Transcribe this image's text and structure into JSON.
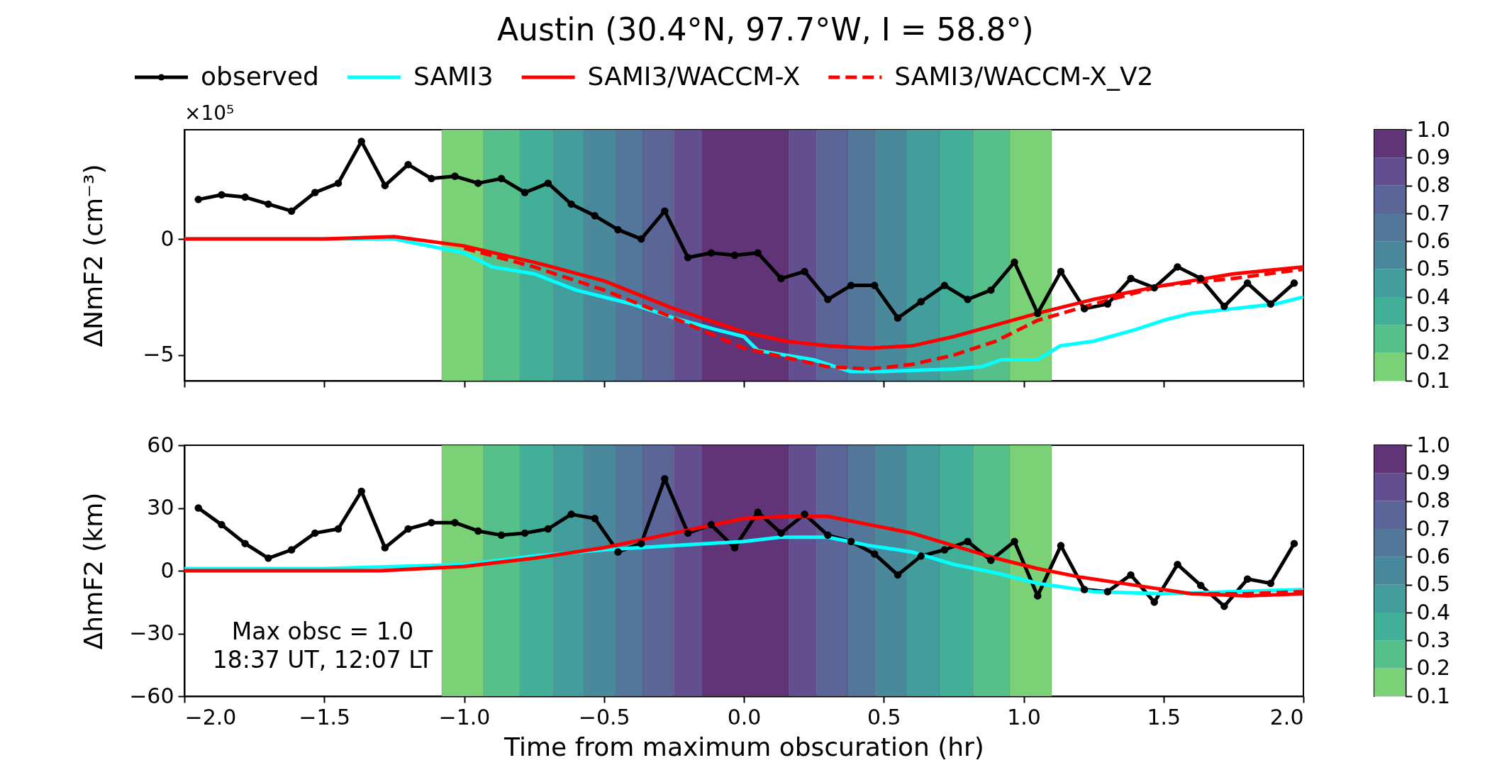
{
  "chart_data": [
    {
      "type": "line",
      "title": "Austin (30.4°N, 97.7°W, I = 58.8°)",
      "ylabel": "ΔNmF2 (cm⁻³)",
      "annotations": [
        "×10⁵"
      ],
      "legend": "top",
      "tick_labels": "y",
      "xlim": [
        -2,
        2
      ],
      "xticks": [
        {
          "value": -2,
          "label": null
        },
        {
          "value": -1.5,
          "label": null
        },
        {
          "value": -1,
          "label": null
        },
        {
          "value": -0.5,
          "label": null
        },
        {
          "value": 0,
          "label": null
        },
        {
          "value": 0.5,
          "label": null
        },
        {
          "value": 1,
          "label": null
        },
        {
          "value": 1.5,
          "label": null
        },
        {
          "value": 2,
          "label": null
        }
      ],
      "ylim": [
        -6.1,
        4.7
      ],
      "yticks": [
        {
          "value": -5,
          "label": "−5"
        },
        0
      ],
      "clim": [
        0.1,
        1.0
      ],
      "cticks": [
        0.1,
        0.2,
        0.3,
        0.4,
        0.5,
        0.6,
        0.7,
        0.8,
        0.9,
        {
          "value": 1,
          "label": "1.0"
        }
      ],
      "series": [
        {
          "name": "observed",
          "color": "#000000",
          "marker": "circle",
          "line_style": "solid",
          "x": [
            -1.95,
            -1.867,
            -1.783,
            -1.7,
            -1.617,
            -1.533,
            -1.45,
            -1.367,
            -1.283,
            -1.2,
            -1.117,
            -1.033,
            -0.95,
            -0.867,
            -0.783,
            -0.7,
            -0.617,
            -0.533,
            -0.45,
            -0.367,
            -0.283,
            -0.2,
            -0.117,
            -0.033,
            0.05,
            0.133,
            0.217,
            0.3,
            0.383,
            0.467,
            0.55,
            0.633,
            0.717,
            0.8,
            0.883,
            0.967,
            1.05,
            1.133,
            1.217,
            1.3,
            1.383,
            1.467,
            1.55,
            1.633,
            1.717,
            1.8,
            1.883,
            1.967
          ],
          "values": [
            1.7,
            1.9,
            1.8,
            1.5,
            1.2,
            2.0,
            2.4,
            4.2,
            2.3,
            3.2,
            2.6,
            2.7,
            2.4,
            2.6,
            2.0,
            2.4,
            1.5,
            1.0,
            0.4,
            0.0,
            1.2,
            -0.8,
            -0.6,
            -0.7,
            -0.6,
            -1.7,
            -1.4,
            -2.6,
            -2.0,
            -2.0,
            -3.4,
            -2.7,
            -2.0,
            -2.6,
            -2.2,
            -1.0,
            -3.2,
            -1.4,
            -3.0,
            -2.8,
            -1.7,
            -2.1,
            -1.2,
            -1.7,
            -2.9,
            -1.9,
            -2.8,
            -1.9
          ]
        },
        {
          "name": "SAMI3",
          "color": "#00ffff",
          "marker": "none",
          "line_style": "solid",
          "x": [
            -2,
            -1.5,
            -1.25,
            -1.0,
            -0.9,
            -0.75,
            -0.6,
            -0.5,
            -0.4,
            -0.25,
            -0.1,
            0,
            0.05,
            0.15,
            0.25,
            0.38,
            0.5,
            0.75,
            0.85,
            0.92,
            1.05,
            1.13,
            1.25,
            1.4,
            1.5,
            1.6,
            1.75,
            1.9,
            2.0
          ],
          "values": [
            0,
            0,
            0,
            -0.6,
            -1.2,
            -1.5,
            -2.2,
            -2.5,
            -2.8,
            -3.4,
            -3.9,
            -4.2,
            -4.8,
            -5.0,
            -5.2,
            -5.7,
            -5.7,
            -5.6,
            -5.5,
            -5.2,
            -5.2,
            -4.6,
            -4.4,
            -3.9,
            -3.5,
            -3.2,
            -3.0,
            -2.8,
            -2.5
          ]
        },
        {
          "name": "SAMI3/WACCM-X",
          "color": "#ff0000",
          "marker": "none",
          "line_style": "solid",
          "x": [
            -2,
            -1.5,
            -1.25,
            -1.0,
            -0.75,
            -0.5,
            -0.25,
            0,
            0.15,
            0.3,
            0.45,
            0.6,
            0.75,
            0.9,
            1.05,
            1.25,
            1.5,
            1.75,
            2.0
          ],
          "values": [
            0,
            0,
            0.1,
            -0.3,
            -1.0,
            -1.8,
            -3.0,
            -4.0,
            -4.4,
            -4.6,
            -4.7,
            -4.6,
            -4.2,
            -3.7,
            -3.2,
            -2.6,
            -2.0,
            -1.5,
            -1.2
          ]
        },
        {
          "name": "SAMI3/WACCM-X_V2",
          "color": "#ff0000",
          "marker": "none",
          "line_style": "dashed",
          "x": [
            -1.0,
            -0.75,
            -0.5,
            -0.25,
            0,
            0.15,
            0.3,
            0.45,
            0.6,
            0.75,
            0.9,
            1.05,
            1.25,
            1.5,
            1.75,
            2.0
          ],
          "values": [
            -0.4,
            -1.2,
            -2.2,
            -3.4,
            -4.7,
            -5.1,
            -5.5,
            -5.6,
            -5.4,
            -5.0,
            -4.4,
            -3.5,
            -2.8,
            -2.0,
            -1.7,
            -1.3
          ]
        }
      ],
      "bands": [
        {
          "axis": "x",
          "from": -1.08,
          "to": -0.93,
          "color": "#7ad176"
        },
        {
          "axis": "x",
          "from": -0.93,
          "to": -0.8,
          "color": "#56c08b"
        },
        {
          "axis": "x",
          "from": -0.8,
          "to": -0.68,
          "color": "#42b099"
        },
        {
          "axis": "x",
          "from": -0.68,
          "to": -0.57,
          "color": "#449d9d"
        },
        {
          "axis": "x",
          "from": -0.57,
          "to": -0.46,
          "color": "#4a889b"
        },
        {
          "axis": "x",
          "from": -0.46,
          "to": -0.36,
          "color": "#52779a"
        },
        {
          "axis": "x",
          "from": -0.36,
          "to": -0.25,
          "color": "#5b6598"
        },
        {
          "axis": "x",
          "from": -0.25,
          "to": -0.15,
          "color": "#634f90"
        },
        {
          "axis": "x",
          "from": -0.15,
          "to": 0.16,
          "color": "#613477"
        },
        {
          "axis": "x",
          "from": 0.16,
          "to": 0.26,
          "color": "#634f90"
        },
        {
          "axis": "x",
          "from": 0.26,
          "to": 0.37,
          "color": "#5b6598"
        },
        {
          "axis": "x",
          "from": 0.37,
          "to": 0.47,
          "color": "#52779a"
        },
        {
          "axis": "x",
          "from": 0.47,
          "to": 0.58,
          "color": "#4a889b"
        },
        {
          "axis": "x",
          "from": 0.58,
          "to": 0.7,
          "color": "#449d9d"
        },
        {
          "axis": "x",
          "from": 0.7,
          "to": 0.82,
          "color": "#42b099"
        },
        {
          "axis": "x",
          "from": 0.82,
          "to": 0.95,
          "color": "#56c08b"
        },
        {
          "axis": "x",
          "from": 0.95,
          "to": 1.1,
          "color": "#7ad176"
        }
      ]
    },
    {
      "type": "line",
      "xlabel": "Time from maximum obscuration (hr)",
      "ylabel": "ΔhmF2 (km)",
      "annotations": [
        "Max obsc = 1.0",
        "18:37 UT, 12:07 LT"
      ],
      "xlim": [
        -2,
        2
      ],
      "xticks": [
        {
          "value": -2,
          "label": "−2.0"
        },
        {
          "value": -1.5,
          "label": "−1.5"
        },
        {
          "value": -1,
          "label": "−1.0"
        },
        {
          "value": -0.5,
          "label": "−0.5"
        },
        {
          "value": 0,
          "label": "0.0"
        },
        {
          "value": 0.5,
          "label": "0.5"
        },
        {
          "value": 1,
          "label": "1.0"
        },
        {
          "value": 1.5,
          "label": "1.5"
        },
        {
          "value": 2,
          "label": "2.0"
        }
      ],
      "ylim": [
        -60,
        60
      ],
      "yticks": [
        {
          "value": -60,
          "label": "−60"
        },
        {
          "value": -30,
          "label": "−30"
        },
        0,
        30,
        60
      ],
      "clim": [
        0.1,
        1.0
      ],
      "cticks": [
        0.1,
        0.2,
        0.3,
        0.4,
        0.5,
        0.6,
        0.7,
        0.8,
        0.9,
        {
          "value": 1,
          "label": "1.0"
        }
      ],
      "series": [
        {
          "color": "#000000",
          "marker": "circle",
          "line_style": "solid",
          "x": [
            -1.95,
            -1.867,
            -1.783,
            -1.7,
            -1.617,
            -1.533,
            -1.45,
            -1.367,
            -1.283,
            -1.2,
            -1.117,
            -1.033,
            -0.95,
            -0.867,
            -0.783,
            -0.7,
            -0.617,
            -0.533,
            -0.45,
            -0.367,
            -0.283,
            -0.2,
            -0.117,
            -0.033,
            0.05,
            0.133,
            0.217,
            0.3,
            0.383,
            0.467,
            0.55,
            0.633,
            0.717,
            0.8,
            0.883,
            0.967,
            1.05,
            1.133,
            1.217,
            1.3,
            1.383,
            1.467,
            1.55,
            1.633,
            1.717,
            1.8,
            1.883,
            1.967
          ],
          "values": [
            30,
            22,
            13,
            6,
            10,
            18,
            20,
            38,
            11,
            20,
            23,
            23,
            19,
            17,
            18,
            20,
            27,
            25,
            9,
            13,
            44,
            18,
            22,
            11,
            28,
            18,
            27,
            17,
            14,
            8,
            -2,
            7,
            10,
            14,
            5,
            14,
            -12,
            12,
            -9,
            -10,
            -2,
            -15,
            3,
            -7,
            -17,
            -4,
            -6,
            13
          ]
        },
        {
          "color": "#00ffff",
          "marker": "none",
          "line_style": "solid",
          "x": [
            -2,
            -1.5,
            -1.0,
            -0.75,
            -0.5,
            -0.25,
            0,
            0.13,
            0.3,
            0.45,
            0.6,
            0.75,
            0.9,
            1.05,
            1.25,
            1.5,
            1.75,
            2.0
          ],
          "values": [
            1,
            1,
            3,
            7,
            10,
            12,
            14,
            16,
            16,
            12,
            9,
            3,
            -1,
            -6,
            -10,
            -11,
            -10,
            -9
          ]
        },
        {
          "color": "#ff0000",
          "marker": "none",
          "line_style": "solid",
          "x": [
            -2,
            -1.5,
            -1.3,
            -1.0,
            -0.75,
            -0.5,
            -0.25,
            0,
            0.15,
            0.3,
            0.45,
            0.6,
            0.75,
            0.9,
            1.05,
            1.2,
            1.4,
            1.6,
            1.8,
            2.0
          ],
          "values": [
            0,
            0,
            0,
            2,
            6,
            11,
            18,
            25,
            26,
            26,
            22,
            18,
            12,
            6,
            1,
            -3,
            -7,
            -11,
            -12,
            -11
          ]
        },
        {
          "color": "#ff0000",
          "marker": "none",
          "line_style": "dashed",
          "x": [
            1.6,
            1.8,
            2.0
          ],
          "values": [
            -11,
            -11,
            -10
          ]
        }
      ],
      "bands": [
        {
          "axis": "x",
          "from": -1.08,
          "to": -0.93,
          "color": "#7ad176"
        },
        {
          "axis": "x",
          "from": -0.93,
          "to": -0.8,
          "color": "#56c08b"
        },
        {
          "axis": "x",
          "from": -0.8,
          "to": -0.68,
          "color": "#42b099"
        },
        {
          "axis": "x",
          "from": -0.68,
          "to": -0.57,
          "color": "#449d9d"
        },
        {
          "axis": "x",
          "from": -0.57,
          "to": -0.46,
          "color": "#4a889b"
        },
        {
          "axis": "x",
          "from": -0.46,
          "to": -0.36,
          "color": "#52779a"
        },
        {
          "axis": "x",
          "from": -0.36,
          "to": -0.25,
          "color": "#5b6598"
        },
        {
          "axis": "x",
          "from": -0.25,
          "to": -0.15,
          "color": "#634f90"
        },
        {
          "axis": "x",
          "from": -0.15,
          "to": 0.16,
          "color": "#613477"
        },
        {
          "axis": "x",
          "from": 0.16,
          "to": 0.26,
          "color": "#634f90"
        },
        {
          "axis": "x",
          "from": 0.26,
          "to": 0.37,
          "color": "#5b6598"
        },
        {
          "axis": "x",
          "from": 0.37,
          "to": 0.47,
          "color": "#52779a"
        },
        {
          "axis": "x",
          "from": 0.47,
          "to": 0.58,
          "color": "#4a889b"
        },
        {
          "axis": "x",
          "from": 0.58,
          "to": 0.7,
          "color": "#449d9d"
        },
        {
          "axis": "x",
          "from": 0.7,
          "to": 0.82,
          "color": "#42b099"
        },
        {
          "axis": "x",
          "from": 0.82,
          "to": 0.95,
          "color": "#56c08b"
        },
        {
          "axis": "x",
          "from": 0.95,
          "to": 1.1,
          "color": "#7ad176"
        }
      ]
    }
  ]
}
